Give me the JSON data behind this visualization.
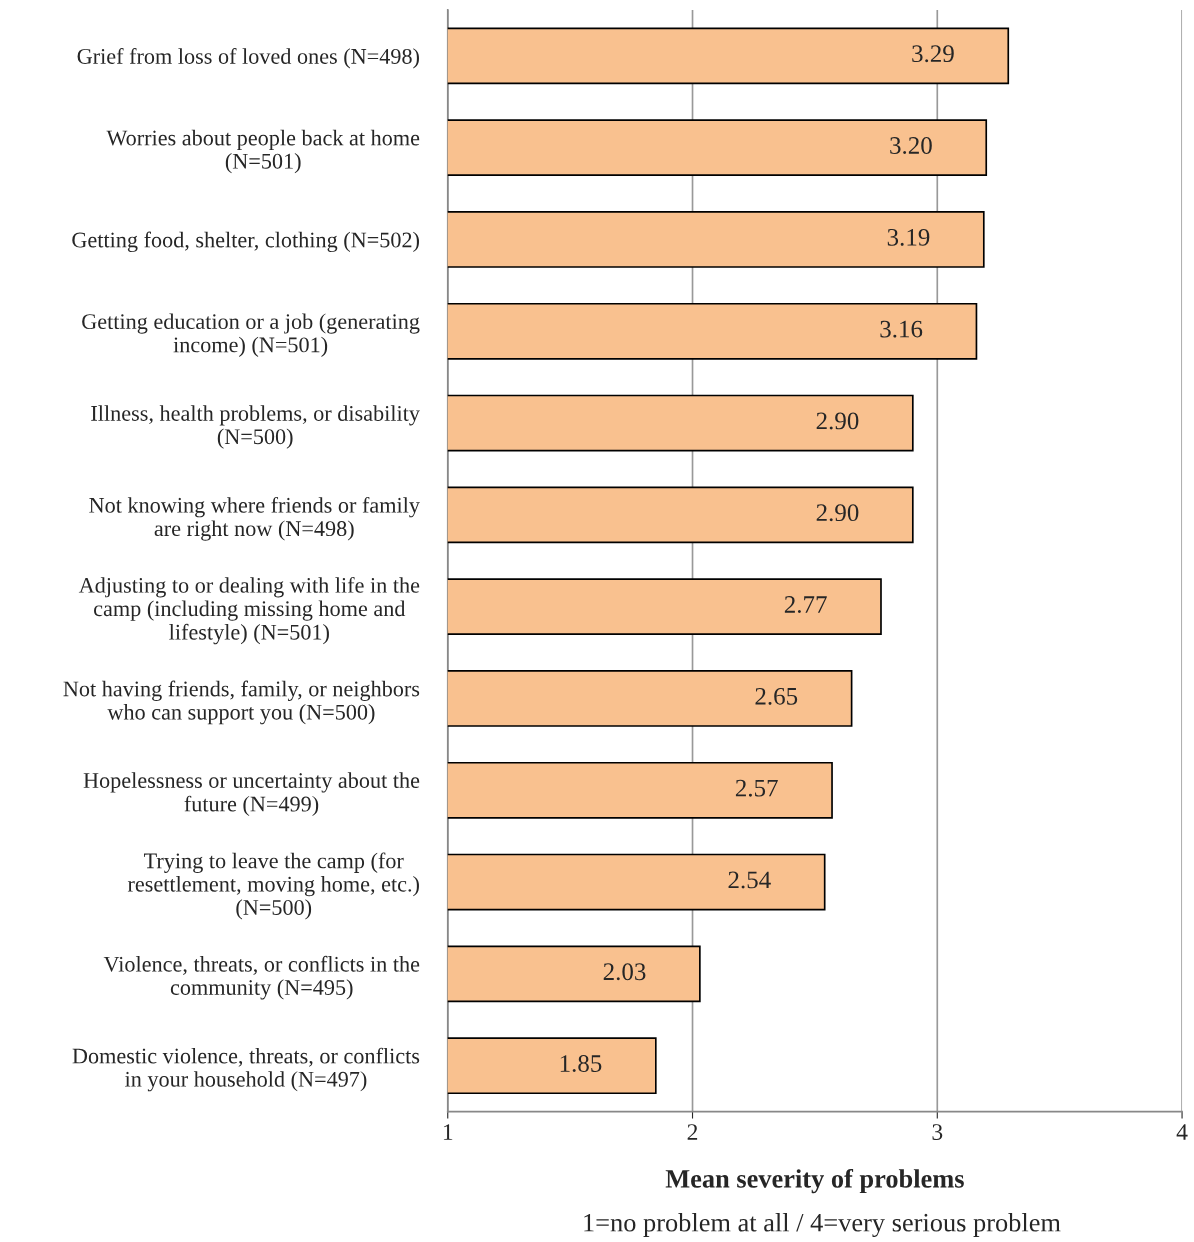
{
  "chart_data": {
    "type": "bar",
    "orientation": "horizontal",
    "categories": [
      "Grief from loss of loved ones (N=498)",
      "Worries about people back at home\n(N=501)",
      "Getting food, shelter, clothing (N=502)",
      "Getting education or a job (generating\nincome) (N=501)",
      "Illness, health problems, or disability\n(N=500)",
      "Not knowing where friends or family\nare right now (N=498)",
      "Adjusting to or dealing with life in the\ncamp (including missing home and\nlifestyle) (N=501)",
      "Not having friends, family, or neighbors\nwho can support you (N=500)",
      "Hopelessness or uncertainty about the\nfuture (N=499)",
      "Trying to leave the camp (for\nresettlement, moving home, etc.)\n(N=500)",
      "Violence, threats, or conflicts in the\ncommunity (N=495)",
      "Domestic violence, threats, or conflicts\nin your household (N=497)"
    ],
    "values": [
      3.29,
      3.2,
      3.19,
      3.16,
      2.9,
      2.9,
      2.77,
      2.65,
      2.57,
      2.54,
      2.03,
      1.85
    ],
    "value_labels": [
      "3.29",
      "3.20",
      "3.19",
      "3.16",
      "2.90",
      "2.90",
      "2.77",
      "2.65",
      "2.57",
      "2.54",
      "2.03",
      "1.85"
    ],
    "color": "#f9c18f",
    "xlim": [
      1,
      4
    ],
    "xticks": [
      1,
      2,
      3,
      4
    ],
    "grid": "x",
    "xlabel": "Mean severity of problems",
    "annotations": [
      "1=no problem at all / 4=very serious problem"
    ]
  }
}
